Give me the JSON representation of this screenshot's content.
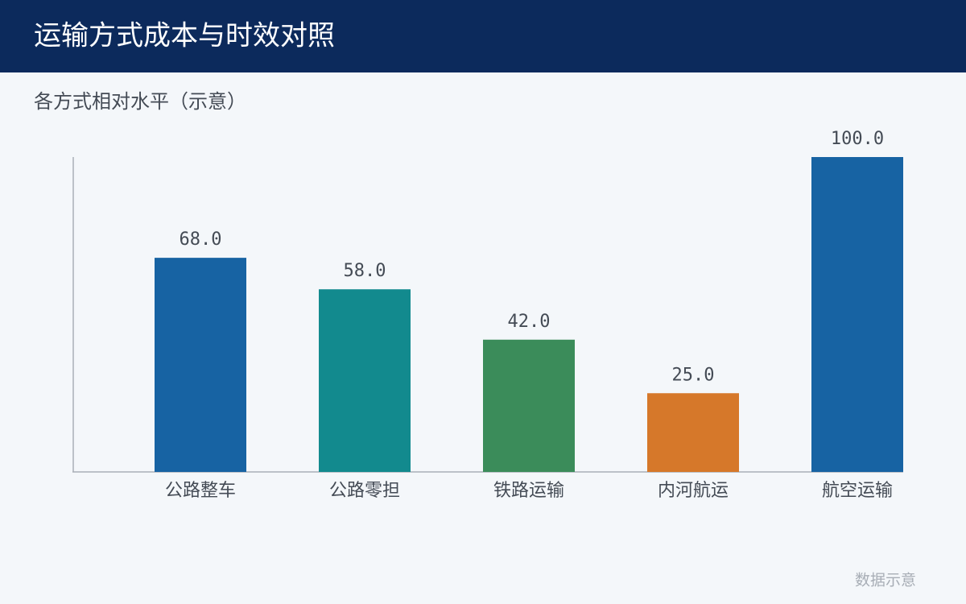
{
  "chart_data": {
    "type": "bar",
    "title": "运输方式成本与时效对照",
    "subtitle": "各方式相对水平（示意）",
    "categories": [
      "公路整车",
      "公路零担",
      "铁路运输",
      "内河航运",
      "航空运输"
    ],
    "values": [
      68,
      58,
      42,
      25,
      100
    ],
    "value_labels": [
      "68.0",
      "58.0",
      "42.0",
      "25.0",
      "100.0"
    ],
    "colors": [
      "#1763a3",
      "#128a8e",
      "#3b8c5a",
      "#d6782a",
      "#1763a3"
    ],
    "ylim": [
      0,
      100
    ],
    "grid": false
  },
  "footer": "数据示意"
}
